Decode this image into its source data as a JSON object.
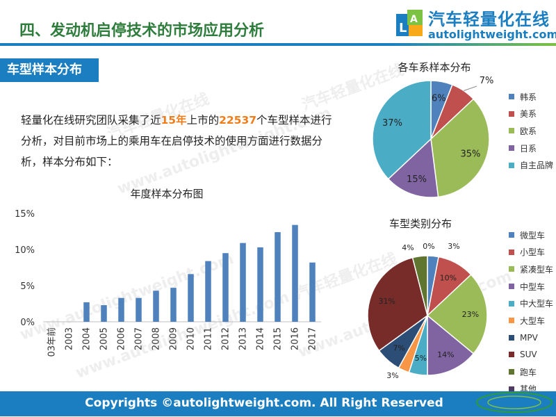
{
  "header": {
    "title": "四、发动机启停技术的市场应用分析"
  },
  "logo": {
    "cn": "汽车轻量化在线",
    "en": "autolightweight.com"
  },
  "section": {
    "tag": "车型样本分布"
  },
  "intro": {
    "p1": "轻量化在线研究团队采集了近",
    "years": "15年",
    "p2": "上市的",
    "count": "22537",
    "p3": "个车型样本进行分析，对目前市场上的乘用车在启停技术的使用方面进行数据分析，样本分布如下："
  },
  "footer": {
    "copyright": "Copyrights ©autolightweight.com. All Right Reserved"
  },
  "watermarks": [
    "汽车轻量化在线",
    "www.autolightweight.com"
  ],
  "chart_data": [
    {
      "type": "bar",
      "title": "年度样本分布图",
      "categories": [
        "03年前",
        "2003",
        "2004",
        "2005",
        "2006",
        "2007",
        "2008",
        "2009",
        "2010",
        "2011",
        "2012",
        "2013",
        "2014",
        "2015",
        "2016",
        "2017"
      ],
      "values": [
        0,
        0,
        2.7,
        2.3,
        3.3,
        3.3,
        4.3,
        4.7,
        6.6,
        8.4,
        9.5,
        10.9,
        10.3,
        12.4,
        13.4,
        8.2
      ],
      "unit": "%",
      "ylim": [
        0,
        15
      ],
      "yticks": [
        "0%",
        "5%",
        "10%",
        "15%"
      ],
      "color": "#4f81bd",
      "grid": false
    },
    {
      "type": "pie",
      "title": "各车系样本分布",
      "labels": [
        "韩系",
        "美系",
        "欧系",
        "日系",
        "自主品牌"
      ],
      "values": [
        6,
        7,
        35,
        15,
        37
      ],
      "value_labels": [
        "6%",
        "7%",
        "35%",
        "15%",
        "37%"
      ],
      "colors": [
        "#4f81bd",
        "#c0504d",
        "#9bbb59",
        "#8064a2",
        "#4bacc6"
      ],
      "legend": "right"
    },
    {
      "type": "pie",
      "title": "车型类别分布",
      "labels": [
        "微型车",
        "小型车",
        "紧凑型车",
        "中型车",
        "中大型车",
        "大型车",
        "MPV",
        "SUV",
        "跑车",
        "其他"
      ],
      "values": [
        3,
        10,
        23,
        14,
        5,
        3,
        7,
        31,
        4,
        0
      ],
      "value_labels": [
        "3%",
        "10%",
        "23%",
        "14%",
        "5%",
        "3%",
        "7%",
        "31%",
        "4%",
        "0%"
      ],
      "colors": [
        "#4f81bd",
        "#c0504d",
        "#9bbb59",
        "#8064a2",
        "#4bacc6",
        "#f79646",
        "#2c4d75",
        "#772c2a",
        "#5f7530",
        "#4d3b62"
      ],
      "legend": "right"
    }
  ]
}
